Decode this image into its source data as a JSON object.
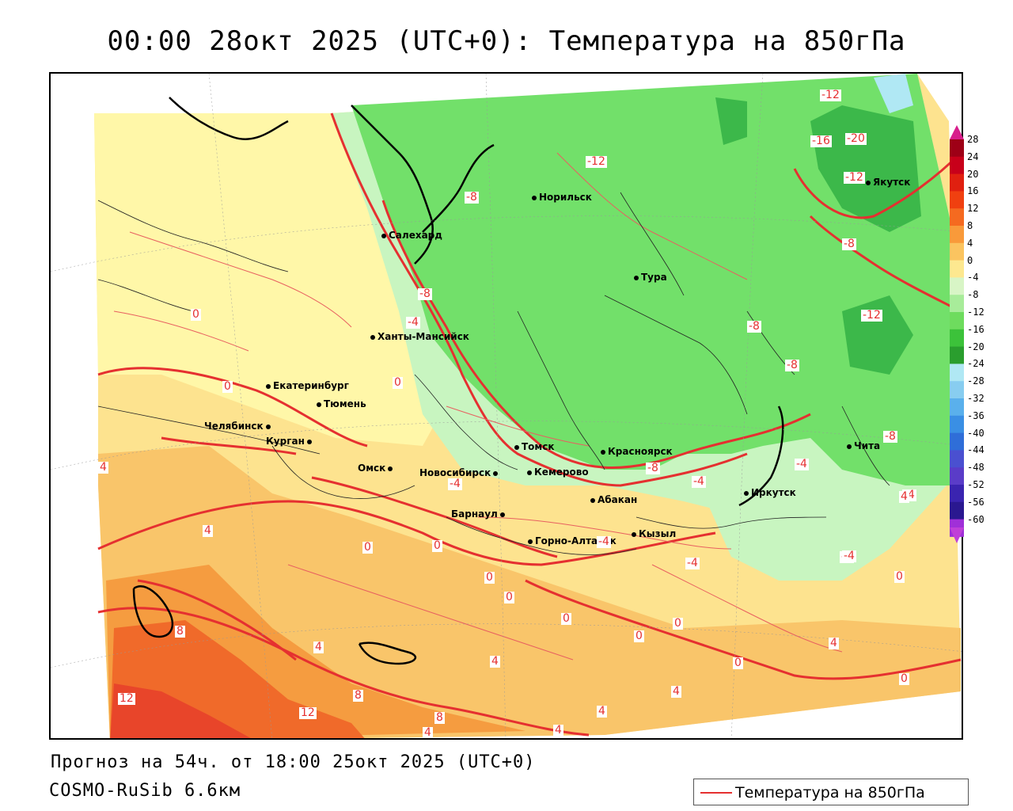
{
  "title": "00:00 28окт 2025 (UTC+0): Температура на 850гПа",
  "footer": {
    "forecast": "Прогноз на 54ч. от 18:00 25окт 2025 (UTC+0)",
    "model": "COSMO-RuSib 6.6км"
  },
  "legend": {
    "label": "Температура на 850гПа",
    "line_color": "#e53030"
  },
  "colors": {
    "contour": "#e53030",
    "green_dark": "#3cb84a",
    "green": "#72e06a",
    "green_light": "#c8f5c0",
    "yellow_light": "#fff7a8",
    "yellow": "#fde38f",
    "orange_light": "#f9c56a",
    "orange": "#f59c40",
    "red_orange": "#f06a2a",
    "red": "#e8452a"
  },
  "cities": [
    {
      "name": "Салехард"
    },
    {
      "name": "Норильск"
    },
    {
      "name": "Тура"
    },
    {
      "name": "Якутск"
    },
    {
      "name": "Ханты-Мансийск"
    },
    {
      "name": "Екатеринбург"
    },
    {
      "name": "Тюмень"
    },
    {
      "name": "Челябинск"
    },
    {
      "name": "Курган"
    },
    {
      "name": "Омск"
    },
    {
      "name": "Новосибирск"
    },
    {
      "name": "Томск"
    },
    {
      "name": "Кемерово"
    },
    {
      "name": "Красноярск"
    },
    {
      "name": "Абакан"
    },
    {
      "name": "Барнаул"
    },
    {
      "name": "Горно-Алтайск"
    },
    {
      "name": "Кызыл"
    },
    {
      "name": "Иркутск"
    },
    {
      "name": "Чита"
    }
  ],
  "contour_labels": [
    "-12",
    "-16",
    "-20",
    "-12",
    "-12",
    "-8",
    "-8",
    "-8",
    "-4",
    "-12",
    "-8",
    "-8",
    "-8",
    "-4",
    "-4",
    "-4",
    "-8",
    "-4",
    "-4",
    "-4",
    "0",
    "0",
    "0",
    "0",
    "0",
    "4",
    "4",
    "8",
    "12",
    "12",
    "8",
    "4",
    "4",
    "4",
    "0",
    "0",
    "0",
    "0",
    "0",
    "0",
    "4",
    "4",
    "0",
    "4",
    "8",
    "4",
    "4",
    "-4",
    "-4",
    "0"
  ],
  "color_scale": [
    {
      "label": "28",
      "color": "#9e0016"
    },
    {
      "label": "24",
      "color": "#c8001a"
    },
    {
      "label": "20",
      "color": "#e02010"
    },
    {
      "label": "16",
      "color": "#f04010"
    },
    {
      "label": "12",
      "color": "#f56a20"
    },
    {
      "label": "8",
      "color": "#f99a3a"
    },
    {
      "label": "4",
      "color": "#fbc460"
    },
    {
      "label": "0",
      "color": "#fde890"
    },
    {
      "label": "-4",
      "color": "#d8f5c6"
    },
    {
      "label": "-8",
      "color": "#a8ec9a"
    },
    {
      "label": "-12",
      "color": "#6edc5e"
    },
    {
      "label": "-16",
      "color": "#3cc23a"
    },
    {
      "label": "-20",
      "color": "#2a9e2e"
    },
    {
      "label": "-24",
      "color": "#b0e8f4"
    },
    {
      "label": "-28",
      "color": "#88cdf0"
    },
    {
      "label": "-32",
      "color": "#5ab0ec"
    },
    {
      "label": "-36",
      "color": "#3a8fe4"
    },
    {
      "label": "-40",
      "color": "#2f6ed8"
    },
    {
      "label": "-44",
      "color": "#4a50d0"
    },
    {
      "label": "-48",
      "color": "#5a3cc8"
    },
    {
      "label": "-52",
      "color": "#3a24b0"
    },
    {
      "label": "-56",
      "color": "#2a1890"
    },
    {
      "label": "-60",
      "color": "#a030d8"
    }
  ]
}
